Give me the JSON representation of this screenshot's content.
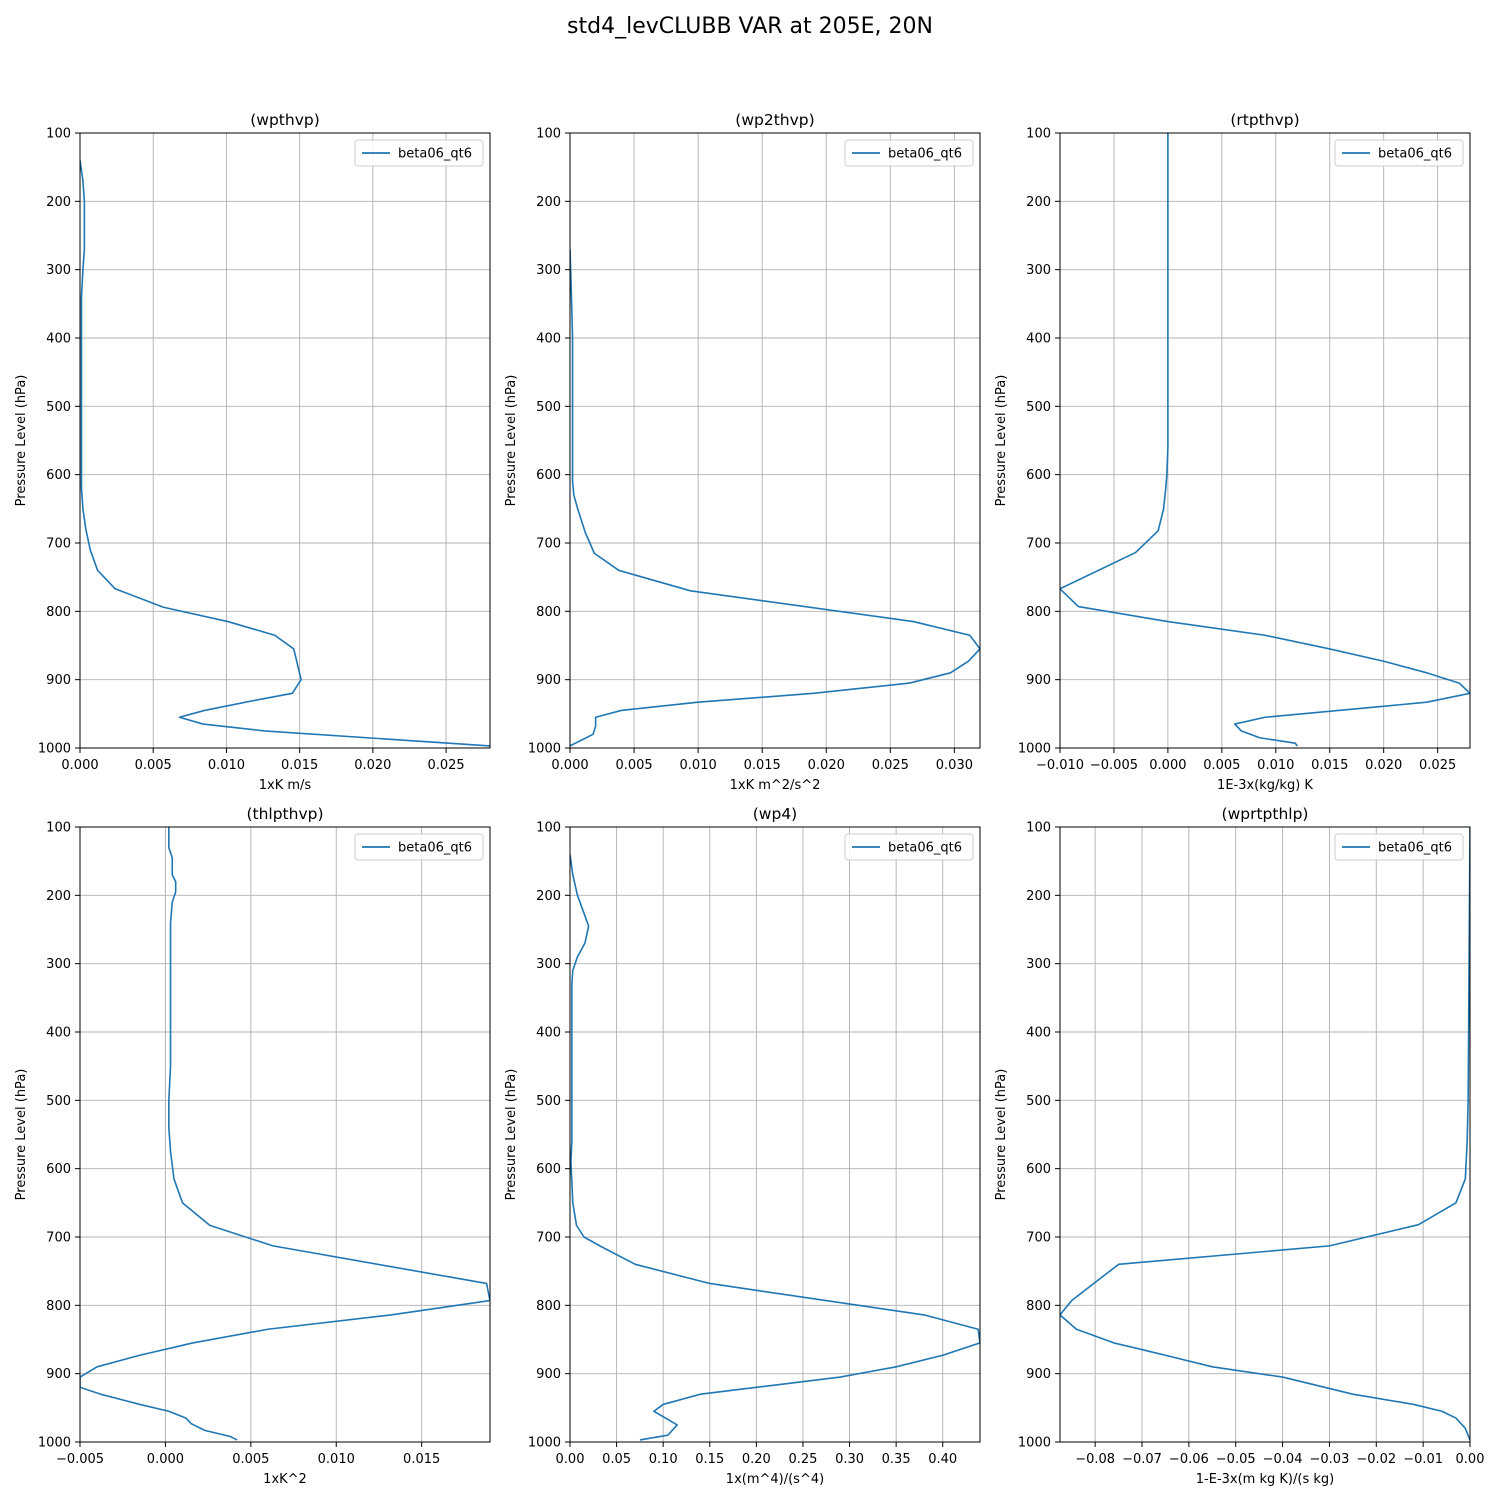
{
  "figure": {
    "title": "std4_levCLUBB VAR at 205E, 20N"
  },
  "colors": {
    "series": "#1f77b4",
    "grid": "#b0b0b0",
    "axis": "#000000",
    "legend_border": "#cccccc"
  },
  "chart_data": [
    {
      "type": "line",
      "title": "(wpthvp)",
      "xlabel": "1xK m/s",
      "ylabel": "Pressure Level (hPa)",
      "xlim": [
        0.0,
        0.028
      ],
      "ylim": [
        1000,
        100
      ],
      "y_inverted": true,
      "grid": true,
      "legend_position": "top-right",
      "xticks": [
        0.0,
        0.005,
        0.01,
        0.015,
        0.02,
        0.025
      ],
      "xtick_labels": [
        "0.000",
        "0.005",
        "0.010",
        "0.015",
        "0.020",
        "0.025"
      ],
      "yticks": [
        100,
        200,
        300,
        400,
        500,
        600,
        700,
        800,
        900,
        1000
      ],
      "ytick_labels": [
        "100",
        "200",
        "300",
        "400",
        "500",
        "600",
        "700",
        "800",
        "900",
        "1000"
      ],
      "series": [
        {
          "name": "beta06_qt6",
          "x": [
            0.0,
            0.0002,
            0.0003,
            0.0003,
            0.0003,
            0.0002,
            0.0001,
            0.0001,
            0.0001,
            0.0001,
            0.0001,
            0.0001,
            0.0001,
            0.0001,
            0.0002,
            0.0004,
            0.0007,
            0.0012,
            0.0024,
            0.0057,
            0.0101,
            0.0133,
            0.0146,
            0.0151,
            0.0145,
            0.012,
            0.0085,
            0.0068,
            0.0084,
            0.0126,
            0.028
          ],
          "y": [
            140,
            170,
            200,
            240,
            270,
            300,
            340,
            380,
            420,
            460,
            500,
            540,
            580,
            620,
            650,
            680,
            710,
            740,
            767,
            794,
            815,
            835,
            855,
            900,
            920,
            930,
            945,
            955,
            965,
            975,
            997
          ]
        }
      ]
    },
    {
      "type": "line",
      "title": "(wp2thvp)",
      "xlabel": "1xK m^2/s^2",
      "ylabel": "Pressure Level (hPa)",
      "xlim": [
        0.0,
        0.032
      ],
      "ylim": [
        1000,
        100
      ],
      "y_inverted": true,
      "grid": true,
      "legend_position": "top-right",
      "xticks": [
        0.0,
        0.005,
        0.01,
        0.015,
        0.02,
        0.025,
        0.03
      ],
      "xtick_labels": [
        "0.000",
        "0.005",
        "0.010",
        "0.015",
        "0.020",
        "0.025",
        "0.030"
      ],
      "yticks": [
        100,
        200,
        300,
        400,
        500,
        600,
        700,
        800,
        900,
        1000
      ],
      "ytick_labels": [
        "100",
        "200",
        "300",
        "400",
        "500",
        "600",
        "700",
        "800",
        "900",
        "1000"
      ],
      "series": [
        {
          "name": "beta06_qt6",
          "x": [
            0.0,
            0.0001,
            0.0002,
            0.0002,
            0.0002,
            0.0002,
            0.0002,
            0.0003,
            0.0006,
            0.0012,
            0.0019,
            0.0038,
            0.0094,
            0.0268,
            0.0312,
            0.032,
            0.0311,
            0.0297,
            0.0265,
            0.019,
            0.01,
            0.004,
            0.002,
            0.002,
            0.0018,
            0.0
          ],
          "y": [
            270,
            330,
            400,
            460,
            520,
            580,
            610,
            630,
            650,
            685,
            715,
            740,
            770,
            815,
            835,
            855,
            873,
            890,
            905,
            920,
            933,
            945,
            955,
            968,
            980,
            997
          ]
        }
      ]
    },
    {
      "type": "line",
      "title": "(rtpthvp)",
      "xlabel": "1E-3x(kg/kg) K",
      "ylabel": "Pressure Level (hPa)",
      "xlim": [
        -0.01,
        0.028
      ],
      "ylim": [
        1000,
        100
      ],
      "y_inverted": true,
      "grid": true,
      "legend_position": "top-right",
      "xticks": [
        -0.01,
        -0.005,
        0.0,
        0.005,
        0.01,
        0.015,
        0.02,
        0.025
      ],
      "xtick_labels": [
        "−0.010",
        "−0.005",
        "0.000",
        "0.005",
        "0.010",
        "0.015",
        "0.020",
        "0.025"
      ],
      "yticks": [
        100,
        200,
        300,
        400,
        500,
        600,
        700,
        800,
        900,
        1000
      ],
      "ytick_labels": [
        "100",
        "200",
        "300",
        "400",
        "500",
        "600",
        "700",
        "800",
        "900",
        "1000"
      ],
      "series": [
        {
          "name": "beta06_qt6",
          "x": [
            0.0,
            0.0,
            0.0,
            0.0,
            0.0,
            0.0,
            -0.0001,
            -0.0002,
            -0.0004,
            -0.0009,
            -0.003,
            -0.01,
            -0.0083,
            0.0,
            0.009,
            0.015,
            0.02,
            0.024,
            0.027,
            0.028,
            0.024,
            0.009,
            0.0062,
            0.0068,
            0.0085,
            0.0118,
            0.012
          ],
          "y": [
            100,
            200,
            300,
            400,
            500,
            560,
            600,
            620,
            650,
            682,
            714,
            767,
            793,
            815,
            835,
            855,
            873,
            890,
            905,
            920,
            933,
            955,
            965,
            975,
            985,
            993,
            997
          ]
        }
      ]
    },
    {
      "type": "line",
      "title": "(thlpthvp)",
      "xlabel": "1xK^2",
      "ylabel": "Pressure Level (hPa)",
      "xlim": [
        -0.005,
        0.019
      ],
      "ylim": [
        1000,
        100
      ],
      "y_inverted": true,
      "grid": true,
      "legend_position": "top-right",
      "xticks": [
        -0.005,
        0.0,
        0.005,
        0.01,
        0.015
      ],
      "xtick_labels": [
        "−0.005",
        "0.000",
        "0.005",
        "0.010",
        "0.015"
      ],
      "yticks": [
        100,
        200,
        300,
        400,
        500,
        600,
        700,
        800,
        900,
        1000
      ],
      "ytick_labels": [
        "100",
        "200",
        "300",
        "400",
        "500",
        "600",
        "700",
        "800",
        "900",
        "1000"
      ],
      "series": [
        {
          "name": "beta06_qt6",
          "x": [
            0.0002,
            0.0002,
            0.0004,
            0.0004,
            0.0006,
            0.0006,
            0.0004,
            0.0003,
            0.0003,
            0.0003,
            0.0003,
            0.0003,
            0.0003,
            0.0002,
            0.0002,
            0.0003,
            0.0005,
            0.001,
            0.0026,
            0.0063,
            0.0188,
            0.019,
            0.0132,
            0.006,
            0.0016,
            -0.0015,
            -0.004,
            -0.005,
            -0.005,
            -0.0038,
            -0.0015,
            0.0002,
            0.0012,
            0.0015,
            0.0023,
            0.0038,
            0.0042
          ],
          "y": [
            100,
            130,
            145,
            170,
            180,
            195,
            210,
            240,
            270,
            300,
            350,
            400,
            450,
            500,
            540,
            575,
            615,
            650,
            683,
            713,
            768,
            793,
            814,
            835,
            855,
            873,
            890,
            905,
            920,
            930,
            945,
            955,
            965,
            973,
            983,
            992,
            997
          ]
        }
      ]
    },
    {
      "type": "line",
      "title": "(wp4)",
      "xlabel": "1x(m^4)/(s^4)",
      "ylabel": "Pressure Level (hPa)",
      "xlim": [
        0.0,
        0.44
      ],
      "ylim": [
        1000,
        100
      ],
      "y_inverted": true,
      "grid": true,
      "legend_position": "top-right",
      "xticks": [
        0.0,
        0.05,
        0.1,
        0.15,
        0.2,
        0.25,
        0.3,
        0.35,
        0.4
      ],
      "xtick_labels": [
        "0.00",
        "0.05",
        "0.10",
        "0.15",
        "0.20",
        "0.25",
        "0.30",
        "0.35",
        "0.40"
      ],
      "yticks": [
        100,
        200,
        300,
        400,
        500,
        600,
        700,
        800,
        900,
        1000
      ],
      "ytick_labels": [
        "100",
        "200",
        "300",
        "400",
        "500",
        "600",
        "700",
        "800",
        "900",
        "1000"
      ],
      "series": [
        {
          "name": "beta06_qt6",
          "x": [
            0.0,
            0.003,
            0.008,
            0.012,
            0.016,
            0.02,
            0.016,
            0.008,
            0.003,
            0.002,
            0.002,
            0.002,
            0.002,
            0.002,
            0.002,
            0.001,
            0.002,
            0.003,
            0.007,
            0.015,
            0.032,
            0.07,
            0.15,
            0.38,
            0.438,
            0.44,
            0.4,
            0.35,
            0.29,
            0.2,
            0.14,
            0.1,
            0.09,
            0.1,
            0.115,
            0.105,
            0.075
          ],
          "y": [
            140,
            170,
            200,
            215,
            230,
            245,
            270,
            290,
            310,
            330,
            380,
            420,
            470,
            520,
            560,
            590,
            620,
            650,
            683,
            700,
            713,
            740,
            768,
            814,
            835,
            855,
            873,
            890,
            905,
            920,
            930,
            945,
            955,
            963,
            975,
            990,
            997
          ]
        }
      ]
    },
    {
      "type": "line",
      "title": "(wprtpthlp)",
      "xlabel": "1-E-3x(m kg K)/(s kg)",
      "ylabel": "Pressure Level (hPa)",
      "xlim": [
        -0.0875,
        0.0
      ],
      "ylim": [
        1000,
        100
      ],
      "y_inverted": true,
      "grid": true,
      "legend_position": "top-right",
      "xticks": [
        -0.08,
        -0.07,
        -0.06,
        -0.05,
        -0.04,
        -0.03,
        -0.02,
        -0.01,
        0.0
      ],
      "xtick_labels": [
        "−0.08",
        "−0.07",
        "−0.06",
        "−0.05",
        "−0.04",
        "−0.03",
        "−0.02",
        "−0.01",
        "0.00"
      ],
      "yticks": [
        100,
        200,
        300,
        400,
        500,
        600,
        700,
        800,
        900,
        1000
      ],
      "ytick_labels": [
        "100",
        "200",
        "300",
        "400",
        "500",
        "600",
        "700",
        "800",
        "900",
        "1000"
      ],
      "series": [
        {
          "name": "beta06_qt6",
          "x": [
            0.0,
            -0.0001,
            -0.0002,
            -0.0003,
            -0.0004,
            -0.0006,
            -0.001,
            -0.003,
            -0.011,
            -0.03,
            -0.075,
            -0.085,
            -0.0875,
            -0.084,
            -0.076,
            -0.065,
            -0.055,
            -0.04,
            -0.025,
            -0.012,
            -0.006,
            -0.003,
            -0.001,
            0.0
          ],
          "y": [
            100,
            200,
            300,
            400,
            500,
            560,
            615,
            650,
            682,
            713,
            740,
            793,
            814,
            835,
            855,
            873,
            890,
            905,
            930,
            945,
            955,
            965,
            980,
            997
          ]
        }
      ]
    }
  ]
}
